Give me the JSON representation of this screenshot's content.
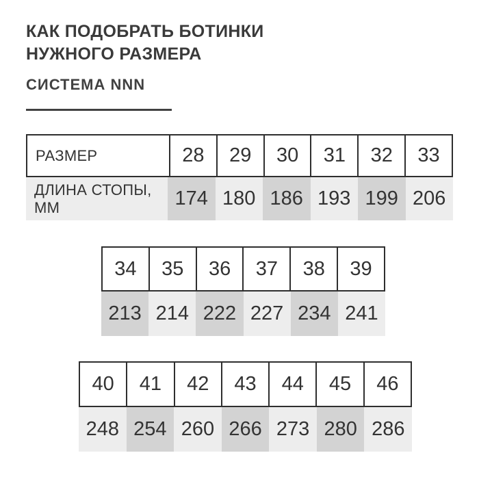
{
  "header": {
    "title_line1": "КАК ПОДОБРАТЬ БОТИНКИ",
    "title_line2": "НУЖНОГО РАЗМЕРА",
    "subtitle": "СИСТЕМА NNN"
  },
  "table1": {
    "size_label": "РАЗМЕР",
    "length_label": "ДЛИНА СТОПЫ, ММ",
    "sizes": [
      "28",
      "29",
      "30",
      "31",
      "32",
      "33"
    ],
    "lengths": [
      "174",
      "180",
      "186",
      "193",
      "199",
      "206"
    ]
  },
  "table2": {
    "sizes": [
      "34",
      "35",
      "36",
      "37",
      "38",
      "39"
    ],
    "lengths": [
      "213",
      "214",
      "222",
      "227",
      "234",
      "241"
    ]
  },
  "table3": {
    "sizes": [
      "40",
      "41",
      "42",
      "43",
      "44",
      "45",
      "46"
    ],
    "lengths": [
      "248",
      "254",
      "260",
      "266",
      "273",
      "280",
      "286"
    ]
  },
  "colors": {
    "background": "#ffffff",
    "title_text": "#3a3a3a",
    "table_text": "#333333",
    "border": "#2e2e2e",
    "cell_dark": "#d3d3d3",
    "cell_light": "#ededed"
  },
  "chart_data": {
    "type": "table",
    "title": "КАК ПОДОБРАТЬ БОТИНКИ НУЖНОГО РАЗМЕРА",
    "subtitle": "СИСТЕМА NNN",
    "columns": [
      "РАЗМЕР",
      "ДЛИНА СТОПЫ, ММ"
    ],
    "rows": [
      [
        28,
        174
      ],
      [
        29,
        180
      ],
      [
        30,
        186
      ],
      [
        31,
        193
      ],
      [
        32,
        199
      ],
      [
        33,
        206
      ],
      [
        34,
        213
      ],
      [
        35,
        214
      ],
      [
        36,
        222
      ],
      [
        37,
        227
      ],
      [
        38,
        234
      ],
      [
        39,
        241
      ],
      [
        40,
        248
      ],
      [
        41,
        254
      ],
      [
        42,
        260
      ],
      [
        43,
        266
      ],
      [
        44,
        273
      ],
      [
        45,
        280
      ],
      [
        46,
        286
      ]
    ]
  }
}
